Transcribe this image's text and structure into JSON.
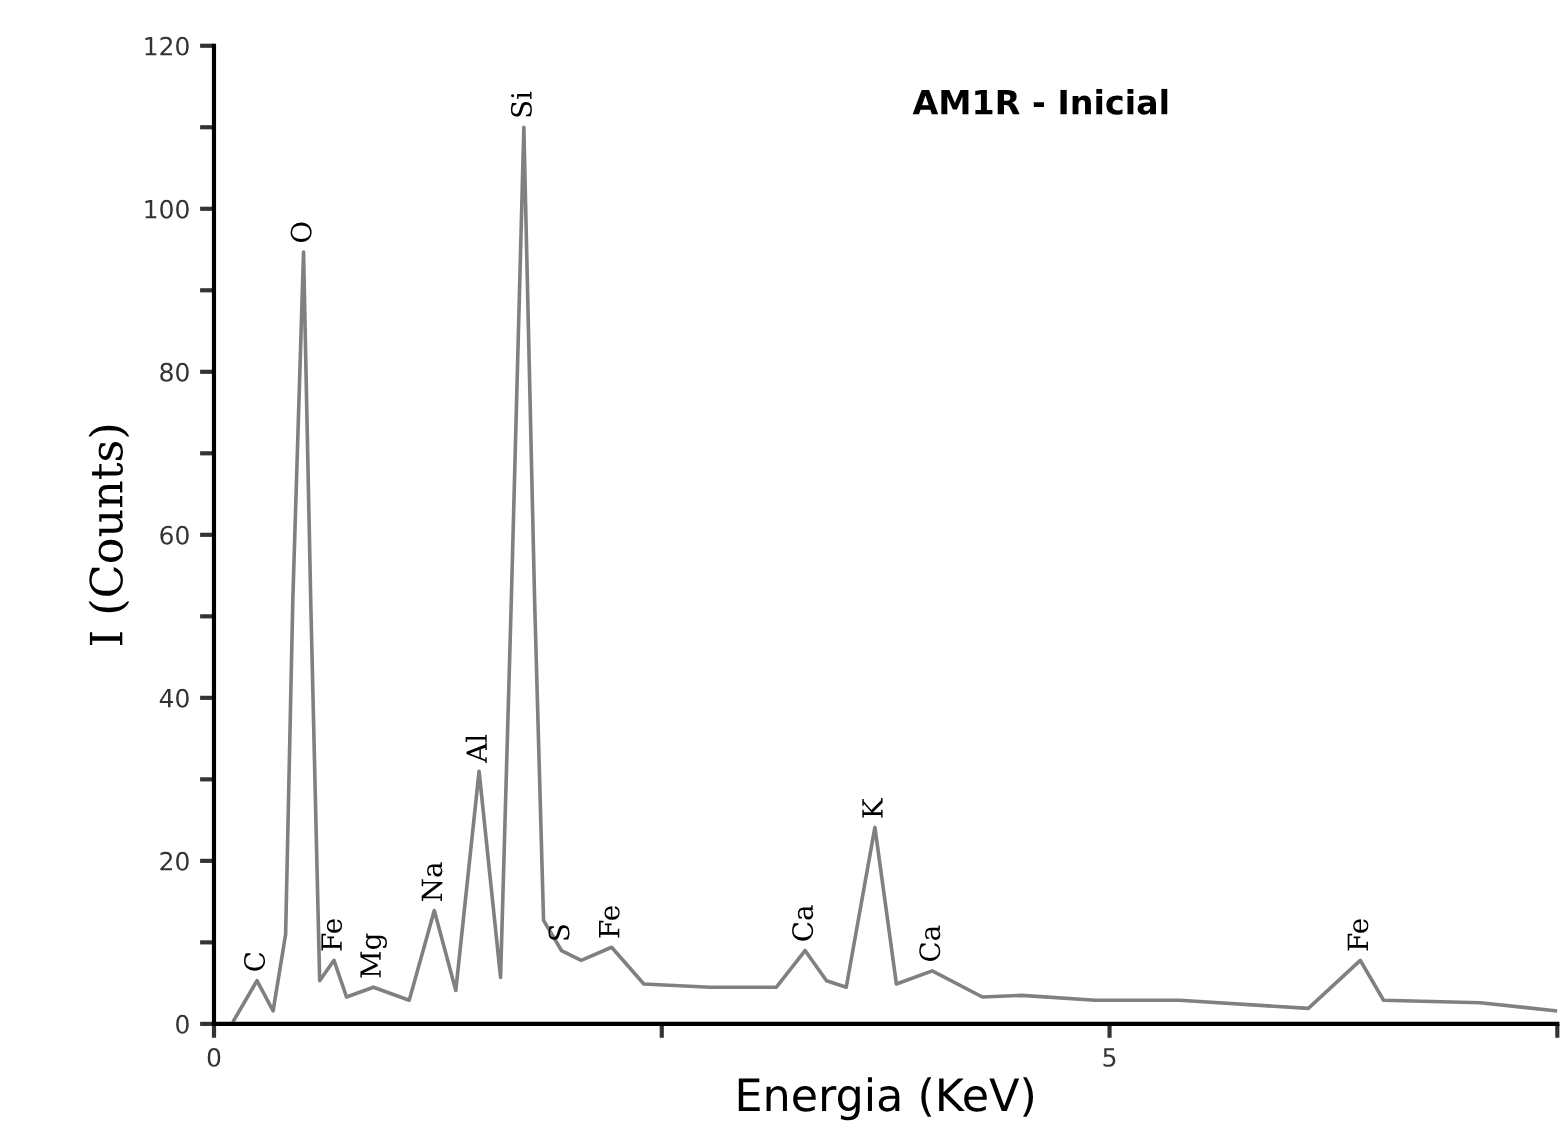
{
  "chart_data": {
    "type": "line",
    "title": "AM1R - Inicial",
    "xlabel": "Energia (KeV)",
    "ylabel": "I (Counts)",
    "x": [
      0.11,
      0.24,
      0.33,
      0.4,
      0.44,
      0.5,
      0.54,
      0.59,
      0.67,
      0.74,
      0.89,
      1.09,
      1.23,
      1.35,
      1.48,
      1.6,
      1.66,
      1.73,
      1.79,
      1.84,
      1.94,
      2.05,
      2.22,
      2.4,
      2.77,
      3.14,
      3.3,
      3.42,
      3.53,
      3.69,
      3.81,
      4.01,
      4.29,
      4.51,
      4.92,
      5.39,
      6.11,
      6.4,
      6.53,
      7.07,
      7.49
    ],
    "series": [
      {
        "color": "#808080",
        "values": [
          0.4,
          5.3,
          1.6,
          11,
          52,
          94.7,
          52,
          5.3,
          7.8,
          3.3,
          4.5,
          2.9,
          13.9,
          4.1,
          31,
          5.7,
          52,
          110,
          52,
          12.7,
          9,
          7.8,
          9.4,
          4.9,
          4.5,
          4.5,
          9,
          5.3,
          4.5,
          24.1,
          4.9,
          6.5,
          3.3,
          3.5,
          2.9,
          2.9,
          1.9,
          7.8,
          2.9,
          2.6,
          1.6
        ]
      }
    ],
    "xlim": [
      0,
      7.5
    ],
    "ylim": [
      0,
      120
    ],
    "xticks": [
      0,
      {
        "value": 2.5,
        "label": null
      },
      5,
      {
        "value": 7.5,
        "label": null
      }
    ],
    "yticks": [
      0,
      {
        "value": 10,
        "label": null
      },
      20,
      {
        "value": 30,
        "label": null
      },
      40,
      {
        "value": 50,
        "label": null
      },
      60,
      {
        "value": 70,
        "label": null
      },
      80,
      {
        "value": 90,
        "label": null
      },
      100,
      {
        "value": 110,
        "label": null
      },
      120
    ],
    "grid": false,
    "marker": "none",
    "line_style": "solid",
    "annotations": [
      {
        "text": "C",
        "x": 0.24,
        "y": 5.3
      },
      {
        "text": "O",
        "x": 0.5,
        "y": 94.7
      },
      {
        "text": "Fe",
        "x": 0.67,
        "y": 7.8
      },
      {
        "text": "Mg",
        "x": 0.89,
        "y": 4.5
      },
      {
        "text": "Na",
        "x": 1.23,
        "y": 13.9
      },
      {
        "text": "Al",
        "x": 1.48,
        "y": 31
      },
      {
        "text": "Si",
        "x": 1.73,
        "y": 110
      },
      {
        "text": "S",
        "x": 1.94,
        "y": 9
      },
      {
        "text": "Fe",
        "x": 2.22,
        "y": 9.4
      },
      {
        "text": "Ca",
        "x": 3.3,
        "y": 9
      },
      {
        "text": "K",
        "x": 3.69,
        "y": 24.1
      },
      {
        "text": "Ca",
        "x": 4.01,
        "y": 6.5
      },
      {
        "text": "Fe",
        "x": 6.4,
        "y": 7.8
      }
    ]
  }
}
